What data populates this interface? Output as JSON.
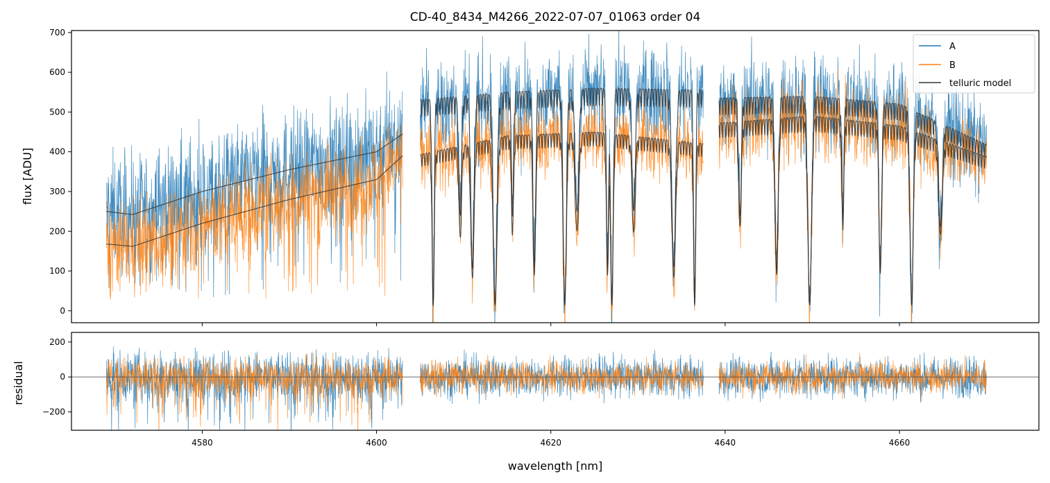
{
  "chart_data": [
    {
      "type": "line",
      "panel": "top",
      "title": "CD-40_8434_M4266_2022-07-07_01063  order 04",
      "xlabel": "",
      "ylabel": "flux [ADU]",
      "xlim": [
        4565,
        4676
      ],
      "ylim": [
        -30,
        705
      ],
      "yticks": [
        0,
        100,
        200,
        300,
        400,
        500,
        600,
        700
      ],
      "yticklabels": [
        "0",
        "100",
        "200",
        "300",
        "400",
        "500",
        "600",
        "700"
      ],
      "xticks": [
        4580,
        4600,
        4620,
        4640,
        4660
      ],
      "legend": {
        "position": "top-right",
        "entries": [
          {
            "label": "A",
            "color": "#1f77b4"
          },
          {
            "label": "B",
            "color": "#ff7f0e"
          },
          {
            "label": "telluric model",
            "color": "#333333"
          }
        ]
      },
      "segments": [
        [
          4569.0,
          4603.0
        ],
        [
          4605.0,
          4637.5
        ],
        [
          4639.3,
          4670.0
        ]
      ],
      "series": [
        {
          "name": "A",
          "color": "#1f77b4",
          "kind": "noisy spectrum (approximated)"
        },
        {
          "name": "B",
          "color": "#ff7f0e",
          "kind": "noisy spectrum (approximated)"
        },
        {
          "name": "telluric model",
          "color": "#333333",
          "kind": "model",
          "continuum_A": {
            "x": [
              4569,
              4572,
              4580,
              4590,
              4600,
              4603,
              4605,
              4615,
              4625,
              4637.5,
              4639.3,
              4650,
              4660,
              4670
            ],
            "y": [
              250,
              242,
              300,
              355,
              400,
              445,
              530,
              550,
              560,
              555,
              535,
              540,
              520,
              418
            ]
          },
          "continuum_B": {
            "x": [
              4569,
              4572,
              4580,
              4590,
              4600,
              4603,
              4605,
              4615,
              4625,
              4637.5,
              4639.3,
              4650,
              4660,
              4670
            ],
            "y": [
              168,
              162,
              220,
              280,
              330,
              390,
              393,
              440,
              450,
              420,
              472,
              490,
              465,
              387
            ]
          },
          "absorption_lines_nm": [
            4606.5,
            4609.6,
            4611.0,
            4613.6,
            4615.6,
            4618.1,
            4621.6,
            4623.0,
            4626.5,
            4627.0,
            4629.5,
            4634.1,
            4636.5,
            4641.7,
            4645.9,
            4649.7,
            4653.5,
            4657.8,
            4661.4,
            4664.7
          ]
        }
      ]
    },
    {
      "type": "line",
      "panel": "bottom",
      "xlabel": "wavelength [nm]",
      "ylabel": "residual",
      "xlim": [
        4565,
        4676
      ],
      "ylim": [
        -305,
        255
      ],
      "yticks": [
        -200,
        0,
        200
      ],
      "yticklabels": [
        "−200",
        "0",
        "200"
      ],
      "xticks": [
        4580,
        4600,
        4620,
        4640,
        4660
      ],
      "xticklabels": [
        "4580",
        "4600",
        "4620",
        "4640",
        "4660"
      ],
      "zero_line": 0,
      "series": [
        {
          "name": "A",
          "color": "#1f77b4",
          "kind": "residual noise (approximated)"
        },
        {
          "name": "B",
          "color": "#ff7f0e",
          "kind": "residual noise (approximated)"
        }
      ]
    }
  ]
}
